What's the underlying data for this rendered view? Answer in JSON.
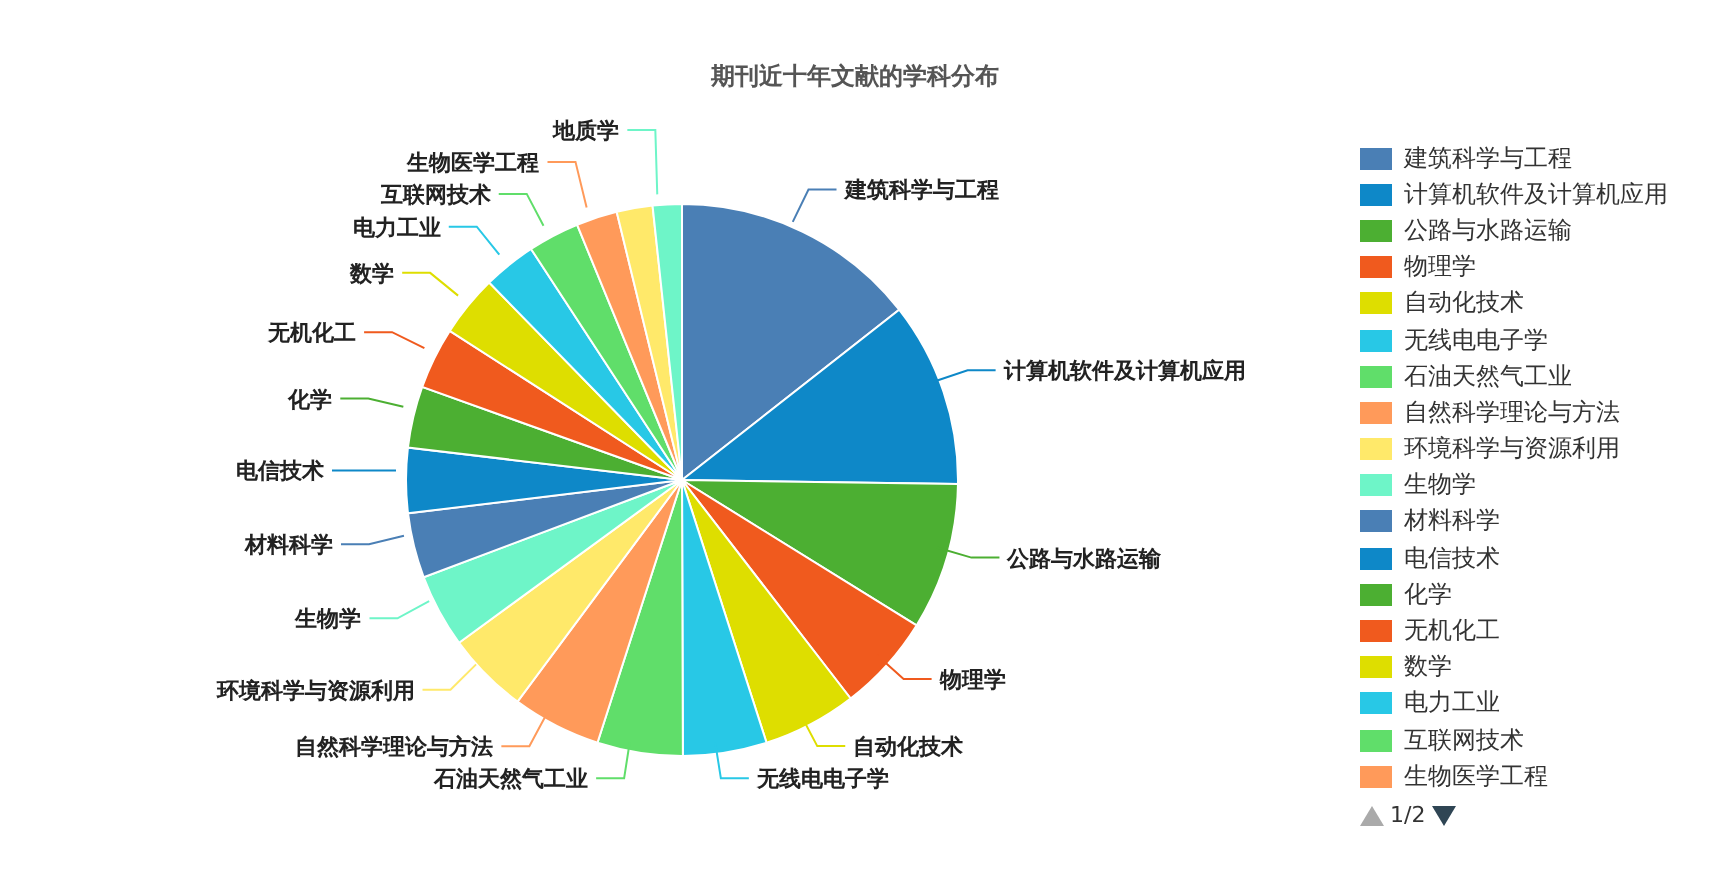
{
  "chart_data": {
    "type": "pie",
    "title": "期刊近十年文献的学科分布",
    "categories": [
      "建筑科学与工程",
      "计算机软件及计算机应用",
      "公路与水路运输",
      "物理学",
      "自动化技术",
      "无线电电子学",
      "石油天然气工业",
      "自然科学理论与方法",
      "环境科学与资源利用",
      "生物学",
      "材料科学",
      "电信技术",
      "化学",
      "无机化工",
      "数学",
      "电力工业",
      "互联网技术",
      "生物医学工程",
      null,
      "地质学"
    ],
    "values": [
      14.4,
      10.8,
      8.6,
      5.7,
      5.5,
      4.9,
      5.0,
      5.2,
      4.8,
      4.3,
      3.8,
      3.8,
      3.6,
      3.6,
      3.6,
      3.1,
      3.0,
      2.4,
      2.1,
      1.7
    ],
    "colors": [
      "#4a7fb5",
      "#0e88c8",
      "#4caf32",
      "#f05a1e",
      "#dede00",
      "#28c8e6",
      "#60de6a",
      "#ff9a5a",
      "#ffe96a",
      "#6ef5c8",
      "#4a7fb5",
      "#0e88c8",
      "#4caf32",
      "#f05a1e",
      "#dede00",
      "#28c8e6",
      "#60de6a",
      "#ff9a5a",
      "#ffe96a",
      "#6ef5c8"
    ],
    "legend": "right",
    "annotations": [
      "1/2"
    ]
  }
}
